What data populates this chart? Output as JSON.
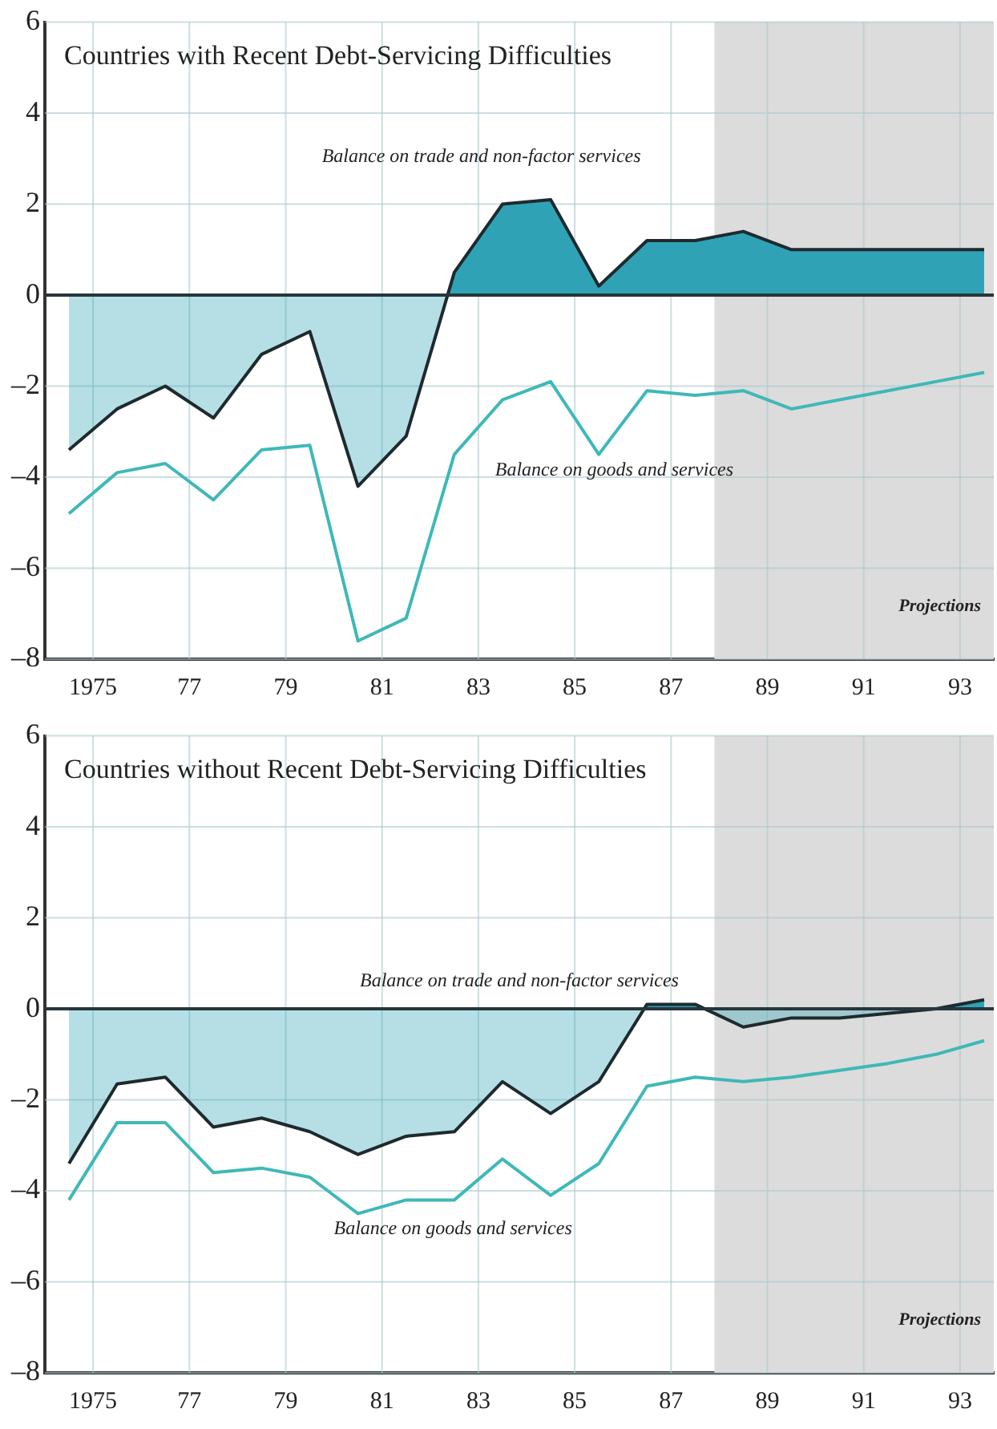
{
  "chart_data": [
    {
      "type": "area",
      "title": "Countries with Recent Debt-Servicing Difficulties",
      "x": [
        1974.5,
        1975.5,
        1976.5,
        1977.5,
        1978.5,
        1979.5,
        1980.5,
        1981.5,
        1982.5,
        1983.5,
        1984.5,
        1985.5,
        1986.5,
        1987.5,
        1988.5,
        1989.5,
        1990.5,
        1991.5,
        1992.5,
        1993.5
      ],
      "series": [
        {
          "name": "Balance on trade and non-factor services",
          "type": "area",
          "color": "#2fa3b5",
          "values": [
            -3.4,
            -2.5,
            -2.0,
            -2.7,
            -1.3,
            -0.8,
            -4.2,
            -3.1,
            0.5,
            2.0,
            2.1,
            0.2,
            1.2,
            1.2,
            1.4,
            1.0,
            1.0,
            1.0,
            1.0,
            1.0
          ]
        },
        {
          "name": "Balance on goods and services",
          "type": "line",
          "color": "#3fb8b8",
          "values": [
            -4.8,
            -3.9,
            -3.7,
            -4.5,
            -3.4,
            -3.3,
            -7.6,
            -7.1,
            -3.5,
            -2.3,
            -1.9,
            -3.5,
            -2.1,
            -2.2,
            -2.1,
            -2.5,
            -2.3,
            -2.1,
            -1.9,
            -1.7
          ]
        }
      ],
      "xlim": [
        1974,
        1993.7
      ],
      "xticks": [
        {
          "value": 1975,
          "label": "1975"
        },
        {
          "value": 1977,
          "label": "77"
        },
        {
          "value": 1979,
          "label": "79"
        },
        {
          "value": 1981,
          "label": "81"
        },
        {
          "value": 1983,
          "label": "83"
        },
        {
          "value": 1985,
          "label": "85"
        },
        {
          "value": 1987,
          "label": "87"
        },
        {
          "value": 1989,
          "label": "89"
        },
        {
          "value": 1991,
          "label": "91"
        },
        {
          "value": 1993,
          "label": "93"
        }
      ],
      "ylim": [
        -8,
        6
      ],
      "yticks": [
        {
          "value": -8,
          "label": "–8"
        },
        {
          "value": -6,
          "label": "–6"
        },
        {
          "value": -4,
          "label": "–4"
        },
        {
          "value": -2,
          "label": "–2"
        },
        0,
        2,
        4,
        6
      ],
      "grid": true,
      "ref_lines": [
        {
          "axis": "y",
          "value": 0,
          "color": "#26363c"
        }
      ],
      "bands": [
        {
          "axis": "x",
          "from": 1987.9,
          "to": 1993.7,
          "label": "Projections",
          "color": "#dcdcdc"
        }
      ]
    },
    {
      "type": "area",
      "title": "Countries without Recent Debt-Servicing Difficulties",
      "x": [
        1974.5,
        1975.5,
        1976.5,
        1977.5,
        1978.5,
        1979.5,
        1980.5,
        1981.5,
        1982.5,
        1983.5,
        1984.5,
        1985.5,
        1986.5,
        1987.5,
        1988.5,
        1989.5,
        1990.5,
        1991.5,
        1992.5,
        1993.5
      ],
      "series": [
        {
          "name": "Balance on trade and non-factor services",
          "type": "area",
          "color": "#2fa3b5",
          "values": [
            -3.4,
            -1.65,
            -1.5,
            -2.6,
            -2.4,
            -2.7,
            -3.2,
            -2.8,
            -2.7,
            -1.6,
            -2.3,
            -1.6,
            0.1,
            0.1,
            -0.4,
            -0.2,
            -0.2,
            -0.1,
            0.0,
            0.2
          ]
        },
        {
          "name": "Balance on goods and services",
          "type": "line",
          "color": "#3fb8b8",
          "values": [
            -4.2,
            -2.5,
            -2.5,
            -3.6,
            -3.5,
            -3.7,
            -4.5,
            -4.2,
            -4.2,
            -3.3,
            -4.1,
            -3.4,
            -1.7,
            -1.5,
            -1.6,
            -1.5,
            -1.35,
            -1.2,
            -1.0,
            -0.7
          ]
        }
      ],
      "xlim": [
        1974,
        1993.7
      ],
      "xticks": [
        {
          "value": 1975,
          "label": "1975"
        },
        {
          "value": 1977,
          "label": "77"
        },
        {
          "value": 1979,
          "label": "79"
        },
        {
          "value": 1981,
          "label": "81"
        },
        {
          "value": 1983,
          "label": "83"
        },
        {
          "value": 1985,
          "label": "85"
        },
        {
          "value": 1987,
          "label": "87"
        },
        {
          "value": 1989,
          "label": "89"
        },
        {
          "value": 1991,
          "label": "91"
        },
        {
          "value": 1993,
          "label": "93"
        }
      ],
      "ylim": [
        -8,
        6
      ],
      "yticks": [
        {
          "value": -8,
          "label": "–8"
        },
        {
          "value": -6,
          "label": "–6"
        },
        {
          "value": -4,
          "label": "–4"
        },
        {
          "value": -2,
          "label": "–2"
        },
        0,
        2,
        4,
        6
      ],
      "grid": true,
      "ref_lines": [
        {
          "axis": "y",
          "value": 0,
          "color": "#26363c"
        }
      ],
      "bands": [
        {
          "axis": "x",
          "from": 1987.9,
          "to": 1993.7,
          "label": "Projections",
          "color": "#dcdcdc"
        }
      ]
    }
  ]
}
